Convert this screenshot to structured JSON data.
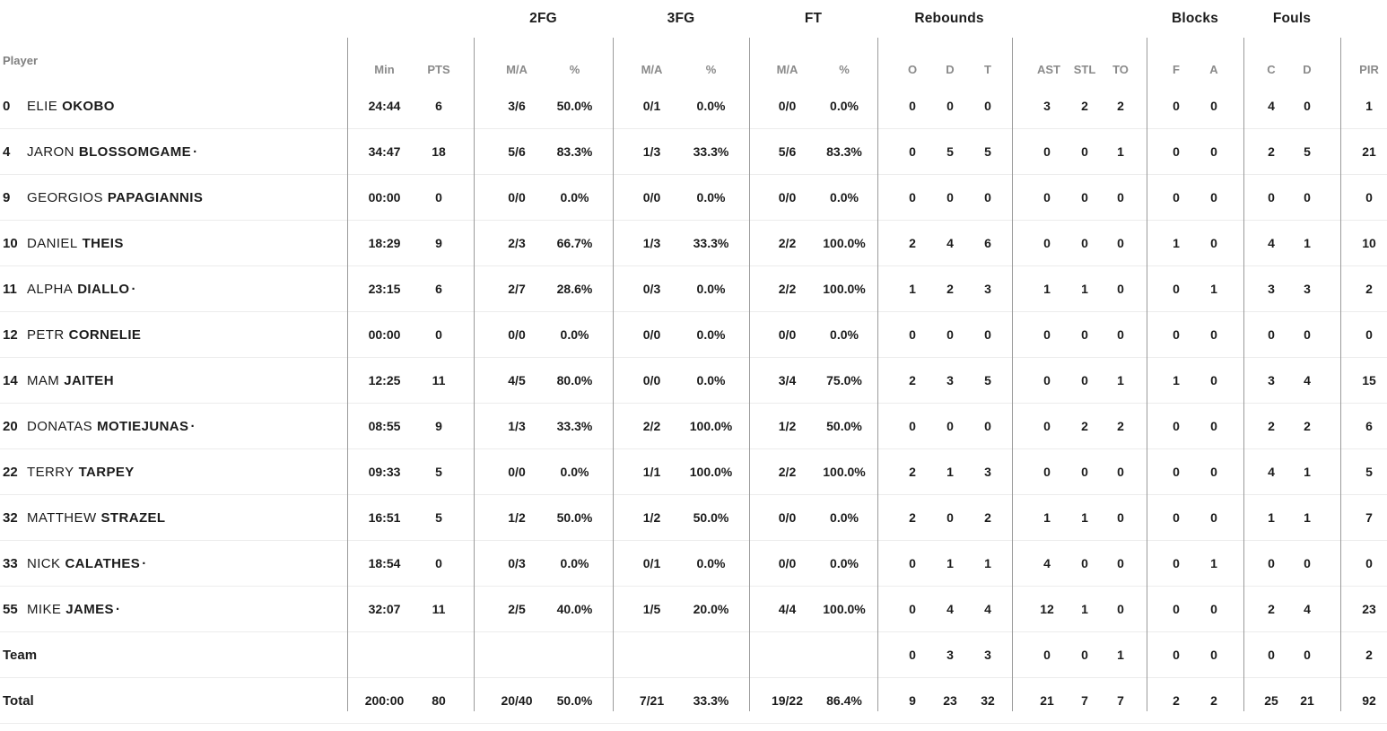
{
  "table": {
    "player_header": "Player",
    "starter_indicator": "·",
    "groups": {
      "fg2": "2FG",
      "fg3": "3FG",
      "ft": "FT",
      "rebounds": "Rebounds",
      "blocks": "Blocks",
      "fouls": "Fouls"
    },
    "columns": {
      "min": "Min",
      "pts": "PTS",
      "ma": "M/A",
      "pct": "%",
      "reb_o": "O",
      "reb_d": "D",
      "reb_t": "T",
      "ast": "AST",
      "stl": "STL",
      "to": "TO",
      "blk_f": "F",
      "blk_a": "A",
      "foul_c": "C",
      "foul_d": "D",
      "pir": "PIR"
    },
    "rows": [
      {
        "number": "0",
        "first": "ELIE",
        "last": "OKOBO",
        "starter": false,
        "stats": {
          "min": "24:44",
          "pts": "6",
          "fg2_ma": "3/6",
          "fg2_pct": "50.0%",
          "fg3_ma": "0/1",
          "fg3_pct": "0.0%",
          "ft_ma": "0/0",
          "ft_pct": "0.0%",
          "reb_o": "0",
          "reb_d": "0",
          "reb_t": "0",
          "ast": "3",
          "stl": "2",
          "to": "2",
          "blk_f": "0",
          "blk_a": "0",
          "foul_c": "4",
          "foul_d": "0",
          "pir": "1"
        }
      },
      {
        "number": "4",
        "first": "JARON",
        "last": "BLOSSOMGAME",
        "starter": true,
        "stats": {
          "min": "34:47",
          "pts": "18",
          "fg2_ma": "5/6",
          "fg2_pct": "83.3%",
          "fg3_ma": "1/3",
          "fg3_pct": "33.3%",
          "ft_ma": "5/6",
          "ft_pct": "83.3%",
          "reb_o": "0",
          "reb_d": "5",
          "reb_t": "5",
          "ast": "0",
          "stl": "0",
          "to": "1",
          "blk_f": "0",
          "blk_a": "0",
          "foul_c": "2",
          "foul_d": "5",
          "pir": "21"
        }
      },
      {
        "number": "9",
        "first": "GEORGIOS",
        "last": "PAPAGIANNIS",
        "starter": false,
        "stats": {
          "min": "00:00",
          "pts": "0",
          "fg2_ma": "0/0",
          "fg2_pct": "0.0%",
          "fg3_ma": "0/0",
          "fg3_pct": "0.0%",
          "ft_ma": "0/0",
          "ft_pct": "0.0%",
          "reb_o": "0",
          "reb_d": "0",
          "reb_t": "0",
          "ast": "0",
          "stl": "0",
          "to": "0",
          "blk_f": "0",
          "blk_a": "0",
          "foul_c": "0",
          "foul_d": "0",
          "pir": "0"
        }
      },
      {
        "number": "10",
        "first": "DANIEL",
        "last": "THEIS",
        "starter": false,
        "stats": {
          "min": "18:29",
          "pts": "9",
          "fg2_ma": "2/3",
          "fg2_pct": "66.7%",
          "fg3_ma": "1/3",
          "fg3_pct": "33.3%",
          "ft_ma": "2/2",
          "ft_pct": "100.0%",
          "reb_o": "2",
          "reb_d": "4",
          "reb_t": "6",
          "ast": "0",
          "stl": "0",
          "to": "0",
          "blk_f": "1",
          "blk_a": "0",
          "foul_c": "4",
          "foul_d": "1",
          "pir": "10"
        }
      },
      {
        "number": "11",
        "first": "ALPHA",
        "last": "DIALLO",
        "starter": true,
        "stats": {
          "min": "23:15",
          "pts": "6",
          "fg2_ma": "2/7",
          "fg2_pct": "28.6%",
          "fg3_ma": "0/3",
          "fg3_pct": "0.0%",
          "ft_ma": "2/2",
          "ft_pct": "100.0%",
          "reb_o": "1",
          "reb_d": "2",
          "reb_t": "3",
          "ast": "1",
          "stl": "1",
          "to": "0",
          "blk_f": "0",
          "blk_a": "1",
          "foul_c": "3",
          "foul_d": "3",
          "pir": "2"
        }
      },
      {
        "number": "12",
        "first": "PETR",
        "last": "CORNELIE",
        "starter": false,
        "stats": {
          "min": "00:00",
          "pts": "0",
          "fg2_ma": "0/0",
          "fg2_pct": "0.0%",
          "fg3_ma": "0/0",
          "fg3_pct": "0.0%",
          "ft_ma": "0/0",
          "ft_pct": "0.0%",
          "reb_o": "0",
          "reb_d": "0",
          "reb_t": "0",
          "ast": "0",
          "stl": "0",
          "to": "0",
          "blk_f": "0",
          "blk_a": "0",
          "foul_c": "0",
          "foul_d": "0",
          "pir": "0"
        }
      },
      {
        "number": "14",
        "first": "MAM",
        "last": "JAITEH",
        "starter": false,
        "stats": {
          "min": "12:25",
          "pts": "11",
          "fg2_ma": "4/5",
          "fg2_pct": "80.0%",
          "fg3_ma": "0/0",
          "fg3_pct": "0.0%",
          "ft_ma": "3/4",
          "ft_pct": "75.0%",
          "reb_o": "2",
          "reb_d": "3",
          "reb_t": "5",
          "ast": "0",
          "stl": "0",
          "to": "1",
          "blk_f": "1",
          "blk_a": "0",
          "foul_c": "3",
          "foul_d": "4",
          "pir": "15"
        }
      },
      {
        "number": "20",
        "first": "DONATAS",
        "last": "MOTIEJUNAS",
        "starter": true,
        "stats": {
          "min": "08:55",
          "pts": "9",
          "fg2_ma": "1/3",
          "fg2_pct": "33.3%",
          "fg3_ma": "2/2",
          "fg3_pct": "100.0%",
          "ft_ma": "1/2",
          "ft_pct": "50.0%",
          "reb_o": "0",
          "reb_d": "0",
          "reb_t": "0",
          "ast": "0",
          "stl": "2",
          "to": "2",
          "blk_f": "0",
          "blk_a": "0",
          "foul_c": "2",
          "foul_d": "2",
          "pir": "6"
        }
      },
      {
        "number": "22",
        "first": "TERRY",
        "last": "TARPEY",
        "starter": false,
        "stats": {
          "min": "09:33",
          "pts": "5",
          "fg2_ma": "0/0",
          "fg2_pct": "0.0%",
          "fg3_ma": "1/1",
          "fg3_pct": "100.0%",
          "ft_ma": "2/2",
          "ft_pct": "100.0%",
          "reb_o": "2",
          "reb_d": "1",
          "reb_t": "3",
          "ast": "0",
          "stl": "0",
          "to": "0",
          "blk_f": "0",
          "blk_a": "0",
          "foul_c": "4",
          "foul_d": "1",
          "pir": "5"
        }
      },
      {
        "number": "32",
        "first": "MATTHEW",
        "last": "STRAZEL",
        "starter": false,
        "stats": {
          "min": "16:51",
          "pts": "5",
          "fg2_ma": "1/2",
          "fg2_pct": "50.0%",
          "fg3_ma": "1/2",
          "fg3_pct": "50.0%",
          "ft_ma": "0/0",
          "ft_pct": "0.0%",
          "reb_o": "2",
          "reb_d": "0",
          "reb_t": "2",
          "ast": "1",
          "stl": "1",
          "to": "0",
          "blk_f": "0",
          "blk_a": "0",
          "foul_c": "1",
          "foul_d": "1",
          "pir": "7"
        }
      },
      {
        "number": "33",
        "first": "NICK",
        "last": "CALATHES",
        "starter": true,
        "stats": {
          "min": "18:54",
          "pts": "0",
          "fg2_ma": "0/3",
          "fg2_pct": "0.0%",
          "fg3_ma": "0/1",
          "fg3_pct": "0.0%",
          "ft_ma": "0/0",
          "ft_pct": "0.0%",
          "reb_o": "0",
          "reb_d": "1",
          "reb_t": "1",
          "ast": "4",
          "stl": "0",
          "to": "0",
          "blk_f": "0",
          "blk_a": "1",
          "foul_c": "0",
          "foul_d": "0",
          "pir": "0"
        }
      },
      {
        "number": "55",
        "first": "MIKE",
        "last": "JAMES",
        "starter": true,
        "stats": {
          "min": "32:07",
          "pts": "11",
          "fg2_ma": "2/5",
          "fg2_pct": "40.0%",
          "fg3_ma": "1/5",
          "fg3_pct": "20.0%",
          "ft_ma": "4/4",
          "ft_pct": "100.0%",
          "reb_o": "0",
          "reb_d": "4",
          "reb_t": "4",
          "ast": "12",
          "stl": "1",
          "to": "0",
          "blk_f": "0",
          "blk_a": "0",
          "foul_c": "2",
          "foul_d": "4",
          "pir": "23"
        }
      },
      {
        "label": "Team",
        "stats": {
          "min": "",
          "pts": "",
          "fg2_ma": "",
          "fg2_pct": "",
          "fg3_ma": "",
          "fg3_pct": "",
          "ft_ma": "",
          "ft_pct": "",
          "reb_o": "0",
          "reb_d": "3",
          "reb_t": "3",
          "ast": "0",
          "stl": "0",
          "to": "1",
          "blk_f": "0",
          "blk_a": "0",
          "foul_c": "0",
          "foul_d": "0",
          "pir": "2"
        }
      },
      {
        "label": "Total",
        "stats": {
          "min": "200:00",
          "pts": "80",
          "fg2_ma": "20/40",
          "fg2_pct": "50.0%",
          "fg3_ma": "7/21",
          "fg3_pct": "33.3%",
          "ft_ma": "19/22",
          "ft_pct": "86.4%",
          "reb_o": "9",
          "reb_d": "23",
          "reb_t": "32",
          "ast": "21",
          "stl": "7",
          "to": "7",
          "blk_f": "2",
          "blk_a": "2",
          "foul_c": "25",
          "foul_d": "21",
          "pir": "92"
        }
      }
    ]
  }
}
